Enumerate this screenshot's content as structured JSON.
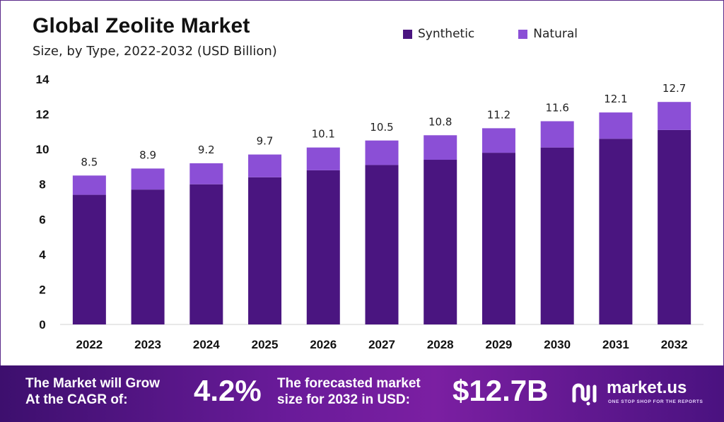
{
  "chart_data": {
    "type": "bar",
    "stacked": true,
    "title": "Global Zeolite Market",
    "subtitle": "Size, by Type, 2022-2032 (USD Billion)",
    "categories": [
      "2022",
      "2023",
      "2024",
      "2025",
      "2026",
      "2027",
      "2028",
      "2029",
      "2030",
      "2031",
      "2032"
    ],
    "series": [
      {
        "name": "Synthetic",
        "color": "#4a1580",
        "values": [
          7.4,
          7.7,
          8.0,
          8.4,
          8.8,
          9.1,
          9.4,
          9.8,
          10.1,
          10.6,
          11.1
        ]
      },
      {
        "name": "Natural",
        "color": "#8b4fd6",
        "values": [
          1.1,
          1.2,
          1.2,
          1.3,
          1.3,
          1.4,
          1.4,
          1.4,
          1.5,
          1.5,
          1.6
        ]
      }
    ],
    "totals": [
      "8.5",
      "8.9",
      "9.2",
      "9.7",
      "10.1",
      "10.5",
      "10.8",
      "11.2",
      "11.6",
      "12.1",
      "12.7"
    ],
    "ylim": [
      0,
      14
    ],
    "yticks": [
      0,
      2,
      4,
      6,
      8,
      10,
      12,
      14
    ],
    "grid": false,
    "legend_position": "top-right"
  },
  "footer": {
    "cagr_label_line1": "The Market will Grow",
    "cagr_label_line2": "At the CAGR of:",
    "cagr_value": "4.2%",
    "forecast_label_line1": "The forecasted market",
    "forecast_label_line2": "size for 2032 in USD:",
    "forecast_value": "$12.7B"
  },
  "brand": {
    "name": "market.us",
    "tagline": "ONE STOP SHOP FOR THE REPORTS",
    "logo_icon": "market-us-logo-icon"
  }
}
